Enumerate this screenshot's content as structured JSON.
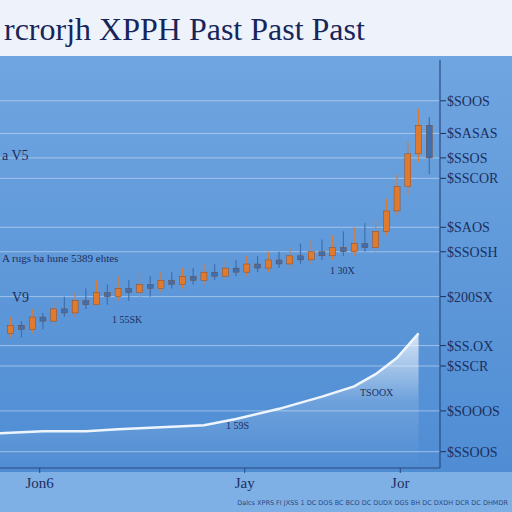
{
  "chart_data": {
    "type": "candlestick",
    "title": "rcrorjh XPPH Past Past Past",
    "annotations": [
      "a V5",
      "A rugs ba hune 5389 ehtes",
      "V9",
      "1 55SK",
      "1 30X",
      "TSOOX",
      "1 59S"
    ],
    "footer": "Dalcs XPRS FI JXSS 1 DC DOS BC BCO DC DUDX DGS BH DC DXDH DCR DC DHMDR",
    "xlim": [
      0,
      41
    ],
    "xticks": [
      {
        "value": 3.7,
        "label": "Jon6"
      },
      {
        "value": 22.8,
        "label": "Jay"
      },
      {
        "value": 37.3,
        "label": "Jor"
      }
    ],
    "ylim": [
      0,
      100
    ],
    "yticks": [
      {
        "value": 4,
        "label": "$SSOOS"
      },
      {
        "value": 14,
        "label": "$SOOOS"
      },
      {
        "value": 25,
        "label": "$SSCR"
      },
      {
        "value": 30,
        "label": "$SS.OX"
      },
      {
        "value": 42,
        "label": "$200SX"
      },
      {
        "value": 53,
        "label": "$SSOSH"
      },
      {
        "value": 59,
        "label": "$SAOS"
      },
      {
        "value": 71,
        "label": "$SSCOR"
      },
      {
        "value": 76,
        "label": "$SSOS"
      },
      {
        "value": 82,
        "label": "$SASAS"
      },
      {
        "value": 90,
        "label": "$SOOS"
      }
    ],
    "grid": true,
    "series": [
      {
        "type": "candlestick",
        "x": [
          1,
          2,
          3,
          4,
          5,
          6,
          7,
          8,
          9,
          10,
          11,
          12,
          13,
          14,
          15,
          16,
          17,
          18,
          19,
          20,
          21,
          22,
          23,
          24,
          25,
          26,
          27,
          28,
          29,
          30,
          31,
          32,
          33,
          34,
          35,
          36,
          37,
          38,
          39,
          40
        ],
        "open": [
          33,
          35,
          34,
          37,
          36,
          39,
          38,
          41,
          40,
          43,
          42,
          44,
          43,
          45,
          44,
          46,
          45,
          47,
          46,
          48,
          47,
          49,
          48,
          50,
          49,
          51,
          50,
          52,
          51,
          53,
          52,
          54,
          53,
          55,
          54,
          58,
          63,
          69,
          77,
          84
        ],
        "high": [
          37,
          36,
          39,
          38,
          41,
          42,
          43,
          44,
          46,
          45,
          47,
          46,
          48,
          47,
          48,
          48,
          49,
          49,
          50,
          50,
          51,
          51,
          52,
          52,
          53,
          53,
          54,
          55,
          56,
          56,
          57,
          58,
          59,
          60,
          61,
          66,
          72,
          80,
          88,
          86
        ],
        "low": [
          32,
          32,
          33,
          34,
          35,
          37,
          37,
          39,
          40,
          40,
          41,
          41,
          42,
          42,
          43,
          44,
          44,
          45,
          45,
          46,
          46,
          47,
          47,
          48,
          48,
          49,
          49,
          50,
          50,
          51,
          51,
          52,
          52,
          53,
          53,
          57,
          62,
          67,
          75,
          72
        ],
        "close": [
          35,
          34,
          37,
          36,
          39,
          38,
          41,
          40,
          43,
          42,
          44,
          43,
          45,
          44,
          46,
          45,
          47,
          46,
          48,
          47,
          49,
          48,
          50,
          49,
          51,
          50,
          52,
          51,
          53,
          52,
          54,
          53,
          55,
          54,
          58,
          63,
          69,
          77,
          84,
          76
        ],
        "colors": [
          "#e07a2e",
          "#3f6fae",
          "#e07a2e",
          "#3f6fae",
          "#e07a2e",
          "#3f6fae",
          "#e07a2e",
          "#3f6fae",
          "#e07a2e",
          "#3f6fae",
          "#e07a2e",
          "#3f6fae",
          "#e07a2e",
          "#3f6fae",
          "#e07a2e",
          "#3f6fae",
          "#e07a2e",
          "#3f6fae",
          "#e07a2e",
          "#3f6fae",
          "#e07a2e",
          "#3f6fae",
          "#e07a2e",
          "#3f6fae",
          "#e07a2e",
          "#3f6fae",
          "#e07a2e",
          "#3f6fae",
          "#e07a2e",
          "#3f6fae",
          "#e07a2e",
          "#3f6fae",
          "#e07a2e",
          "#3f6fae",
          "#e07a2e",
          "#e07a2e",
          "#e07a2e",
          "#e07a2e",
          "#e07a2e",
          "#3f6fae"
        ]
      },
      {
        "type": "area",
        "color": "#eef5fd",
        "x": [
          0,
          4,
          8,
          11,
          15,
          19,
          22,
          26,
          30,
          33,
          35,
          37,
          39
        ],
        "values": [
          8.5,
          9,
          9,
          9.5,
          10,
          10.5,
          12,
          14.5,
          17.5,
          20,
          23,
          27,
          33
        ]
      }
    ]
  }
}
